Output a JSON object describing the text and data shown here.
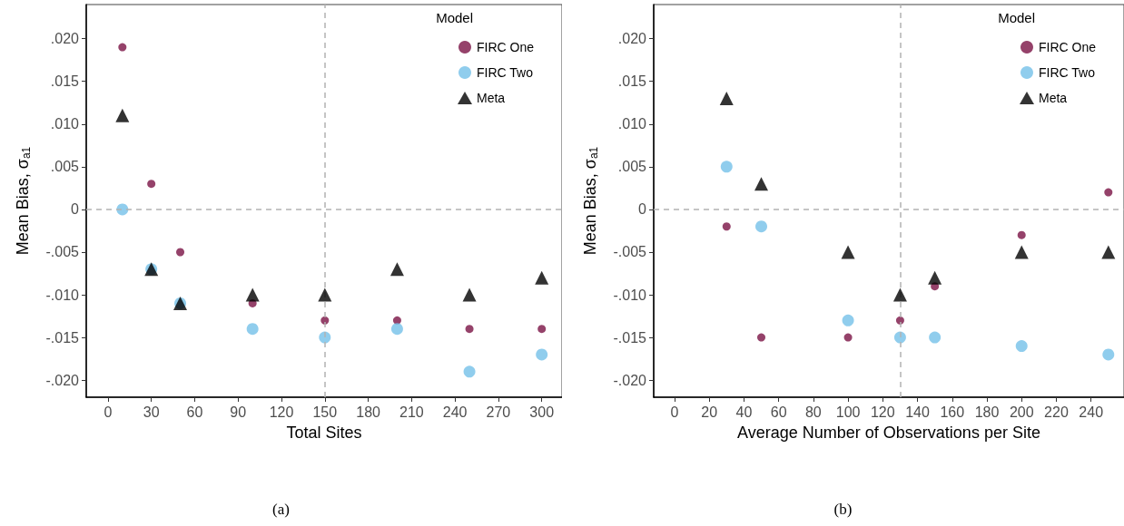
{
  "chart_data": [
    {
      "type": "scatter",
      "xlabel": "Total Sites",
      "ylabel": "Mean Bias, σ$_{a1}$",
      "legend_title": "Model",
      "legend": "top right",
      "grid": false,
      "xlim": [
        -15,
        314
      ],
      "xticks": [
        0,
        30,
        60,
        90,
        120,
        150,
        180,
        210,
        240,
        270,
        300
      ],
      "ylim": [
        -0.022,
        0.024
      ],
      "yticks": [
        {
          "value": -0.02,
          "label": "-.020"
        },
        {
          "value": -0.015,
          "label": "-.015"
        },
        {
          "value": -0.01,
          "label": "-.010"
        },
        {
          "value": -0.005,
          "label": "-.005"
        },
        0,
        {
          "value": 0.005,
          "label": ".005"
        },
        {
          "value": 0.01,
          "label": ".010"
        },
        {
          "value": 0.015,
          "label": ".015"
        },
        {
          "value": 0.02,
          "label": ".020"
        }
      ],
      "x": [
        10,
        30,
        50,
        100,
        150,
        200,
        250,
        300
      ],
      "series": [
        {
          "name": "FIRC One",
          "color": "#7b1345",
          "marker": "circle",
          "values": [
            0.019,
            0.003,
            -0.005,
            -0.011,
            -0.013,
            -0.013,
            -0.014,
            -0.014
          ]
        },
        {
          "name": "FIRC Two",
          "color": "#74c0e9",
          "marker": "circle",
          "values": [
            0,
            -0.007,
            -0.011,
            -0.014,
            -0.015,
            -0.014,
            -0.019,
            -0.017
          ]
        },
        {
          "name": "Meta",
          "color": "#000000",
          "marker": "triangle",
          "values": [
            0.011,
            -0.007,
            -0.011,
            -0.01,
            -0.01,
            -0.007,
            -0.01,
            -0.008
          ]
        }
      ],
      "ref_lines": [
        {
          "axis": "x",
          "value": 150,
          "color": "#b3b3b3",
          "line_style": "dashed"
        },
        {
          "axis": "y",
          "value": 0,
          "color": "#b3b3b3",
          "line_style": "dashed"
        }
      ],
      "annotations": [
        "(a)"
      ]
    },
    {
      "type": "scatter",
      "xlabel": "Average Number of Observations per Site",
      "ylabel": "Mean Bias, σ$_{a1}$",
      "legend_title": "Model",
      "legend": "top right",
      "grid": false,
      "xlim": [
        -12,
        259
      ],
      "xticks": [
        0,
        20,
        40,
        60,
        80,
        100,
        120,
        140,
        160,
        180,
        200,
        220,
        240
      ],
      "ylim": [
        -0.022,
        0.024
      ],
      "yticks": [
        {
          "value": -0.02,
          "label": "-.020"
        },
        {
          "value": -0.015,
          "label": "-.015"
        },
        {
          "value": -0.01,
          "label": "-.010"
        },
        {
          "value": -0.005,
          "label": "-.005"
        },
        0,
        {
          "value": 0.005,
          "label": ".005"
        },
        {
          "value": 0.01,
          "label": ".010"
        },
        {
          "value": 0.015,
          "label": ".015"
        },
        {
          "value": 0.02,
          "label": ".020"
        }
      ],
      "x": [
        30,
        50,
        100,
        130,
        150,
        200,
        250
      ],
      "series": [
        {
          "name": "FIRC One",
          "color": "#7b1345",
          "marker": "circle",
          "values": [
            -0.002,
            -0.015,
            -0.015,
            -0.013,
            -0.009,
            -0.003,
            0.002
          ]
        },
        {
          "name": "FIRC Two",
          "color": "#74c0e9",
          "marker": "circle",
          "values": [
            0.005,
            -0.002,
            -0.013,
            -0.015,
            -0.015,
            -0.016,
            -0.017
          ]
        },
        {
          "name": "Meta",
          "color": "#000000",
          "marker": "triangle",
          "values": [
            0.013,
            0.003,
            -0.005,
            -0.01,
            -0.008,
            -0.005,
            -0.005
          ]
        }
      ],
      "ref_lines": [
        {
          "axis": "x",
          "value": 130,
          "color": "#b3b3b3",
          "line_style": "dashed"
        },
        {
          "axis": "y",
          "value": 0,
          "color": "#b3b3b3",
          "line_style": "dashed"
        }
      ],
      "annotations": [
        "(b)"
      ]
    }
  ]
}
